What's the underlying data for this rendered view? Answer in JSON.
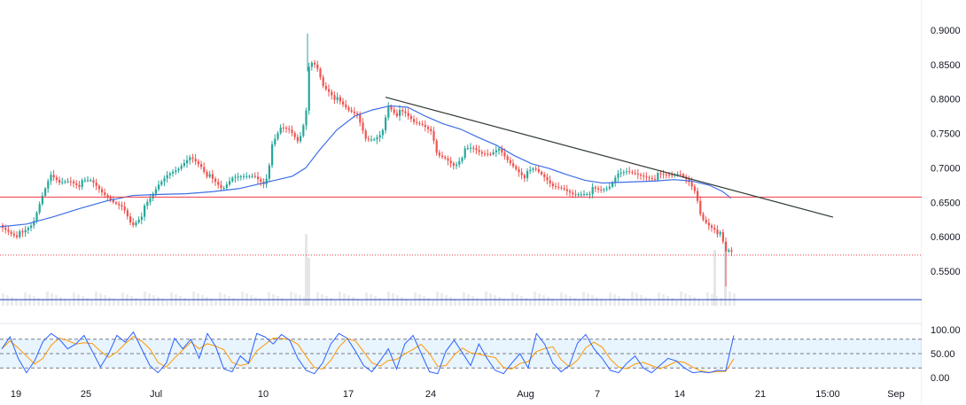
{
  "chart_data": {
    "type": "candlestick",
    "price_axis": {
      "ticks": [
        "0.9000",
        "0.8500",
        "0.8000",
        "0.7500",
        "0.7000",
        "0.6500",
        "0.6000",
        "0.5500"
      ],
      "range": [
        0.5,
        0.905
      ]
    },
    "time_axis": {
      "labels": [
        "19",
        "25",
        "Jul",
        "10",
        "17",
        "24",
        "Aug",
        "7",
        "14",
        "21",
        "15:00",
        "Sep"
      ]
    },
    "price_levels": [
      {
        "label": "0.6577",
        "value": 0.6577,
        "color": "#f23645",
        "style": "solid"
      },
      {
        "label": "0.5734",
        "value": 0.5734,
        "color": "#f23645",
        "style": "dotted"
      },
      {
        "label": "0.5089",
        "value": 0.5089,
        "color": "#1e3fb0",
        "style": "solid"
      }
    ],
    "trendline": {
      "start": {
        "x": 435,
        "price": 0.8025
      },
      "end": {
        "x": 940,
        "price": 0.6285
      },
      "color": "#2f3a32"
    },
    "moving_average": {
      "color": "#3c6ee6",
      "points": [
        [
          0,
          0.6145
        ],
        [
          30,
          0.6185
        ],
        [
          60,
          0.629
        ],
        [
          90,
          0.641
        ],
        [
          120,
          0.652
        ],
        [
          150,
          0.66
        ],
        [
          180,
          0.6615
        ],
        [
          210,
          0.6625
        ],
        [
          240,
          0.6655
        ],
        [
          270,
          0.67
        ],
        [
          300,
          0.679
        ],
        [
          330,
          0.688
        ],
        [
          345,
          0.7
        ],
        [
          360,
          0.725
        ],
        [
          380,
          0.755
        ],
        [
          400,
          0.775
        ],
        [
          420,
          0.784
        ],
        [
          440,
          0.79
        ],
        [
          460,
          0.788
        ],
        [
          480,
          0.775
        ],
        [
          500,
          0.764
        ],
        [
          520,
          0.756
        ],
        [
          540,
          0.744
        ],
        [
          560,
          0.733
        ],
        [
          580,
          0.718
        ],
        [
          600,
          0.706
        ],
        [
          620,
          0.699
        ],
        [
          640,
          0.69
        ],
        [
          660,
          0.682
        ],
        [
          680,
          0.678
        ],
        [
          700,
          0.679
        ],
        [
          720,
          0.68
        ],
        [
          740,
          0.681
        ],
        [
          760,
          0.683
        ],
        [
          780,
          0.681
        ],
        [
          800,
          0.675
        ],
        [
          815,
          0.666
        ],
        [
          825,
          0.656
        ]
      ]
    },
    "price_path": [
      [
        0,
        0.617
      ],
      [
        12,
        0.608
      ],
      [
        24,
        0.601
      ],
      [
        36,
        0.615
      ],
      [
        46,
        0.655
      ],
      [
        56,
        0.69
      ],
      [
        66,
        0.68
      ],
      [
        78,
        0.684
      ],
      [
        90,
        0.676
      ],
      [
        102,
        0.678
      ],
      [
        114,
        0.662
      ],
      [
        126,
        0.65
      ],
      [
        138,
        0.644
      ],
      [
        148,
        0.618
      ],
      [
        158,
        0.632
      ],
      [
        168,
        0.65
      ],
      [
        178,
        0.672
      ],
      [
        188,
        0.688
      ],
      [
        200,
        0.698
      ],
      [
        214,
        0.718
      ],
      [
        226,
        0.705
      ],
      [
        238,
        0.68
      ],
      [
        250,
        0.665
      ],
      [
        262,
        0.685
      ],
      [
        274,
        0.688
      ],
      [
        286,
        0.69
      ],
      [
        298,
        0.678
      ],
      [
        306,
        0.728
      ],
      [
        316,
        0.755
      ],
      [
        326,
        0.752
      ],
      [
        336,
        0.735
      ],
      [
        344,
        0.775
      ],
      [
        348,
        0.855
      ],
      [
        356,
        0.85
      ],
      [
        364,
        0.82
      ],
      [
        372,
        0.812
      ],
      [
        382,
        0.792
      ],
      [
        392,
        0.78
      ],
      [
        402,
        0.775
      ],
      [
        412,
        0.74
      ],
      [
        422,
        0.742
      ],
      [
        430,
        0.752
      ],
      [
        437,
        0.793
      ],
      [
        446,
        0.78
      ],
      [
        456,
        0.775
      ],
      [
        466,
        0.763
      ],
      [
        476,
        0.76
      ],
      [
        486,
        0.752
      ],
      [
        492,
        0.72
      ],
      [
        502,
        0.715
      ],
      [
        512,
        0.705
      ],
      [
        522,
        0.722
      ],
      [
        532,
        0.725
      ],
      [
        542,
        0.718
      ],
      [
        552,
        0.718
      ],
      [
        562,
        0.728
      ],
      [
        572,
        0.712
      ],
      [
        582,
        0.7
      ],
      [
        592,
        0.688
      ],
      [
        602,
        0.695
      ],
      [
        612,
        0.685
      ],
      [
        622,
        0.672
      ],
      [
        634,
        0.67
      ],
      [
        646,
        0.663
      ],
      [
        656,
        0.665
      ],
      [
        666,
        0.667
      ],
      [
        676,
        0.663
      ],
      [
        686,
        0.668
      ],
      [
        696,
        0.69
      ],
      [
        706,
        0.695
      ],
      [
        716,
        0.693
      ],
      [
        726,
        0.69
      ],
      [
        736,
        0.688
      ],
      [
        746,
        0.686
      ],
      [
        756,
        0.686
      ],
      [
        766,
        0.69
      ],
      [
        776,
        0.68
      ],
      [
        784,
        0.665
      ],
      [
        790,
        0.63
      ],
      [
        798,
        0.62
      ],
      [
        806,
        0.614
      ],
      [
        812,
        0.6
      ],
      [
        818,
        0.574
      ],
      [
        822,
        0.577
      ],
      [
        826,
        0.5734
      ]
    ],
    "volume_spikes": [
      [
        345,
        0.9
      ],
      [
        348,
        0.6
      ],
      [
        806,
        0.7
      ],
      [
        818,
        0.8
      ]
    ],
    "stochastic": {
      "ticks": [
        "100.00",
        "50.00",
        "0.00"
      ],
      "range": [
        0,
        100
      ],
      "bands": [
        80,
        20
      ],
      "k_color": "#2962ff",
      "d_color": "#ff9800",
      "k_values": [
        60,
        85,
        40,
        10,
        35,
        75,
        92,
        80,
        60,
        70,
        88,
        55,
        22,
        50,
        88,
        74,
        95,
        60,
        25,
        10,
        30,
        82,
        60,
        80,
        40,
        92,
        65,
        18,
        12,
        45,
        30,
        92,
        85,
        70,
        90,
        78,
        40,
        15,
        8,
        30,
        70,
        92,
        82,
        55,
        25,
        12,
        35,
        60,
        18,
        70,
        88,
        50,
        12,
        8,
        55,
        78,
        52,
        25,
        70,
        40,
        15,
        8,
        30,
        50,
        20,
        92,
        70,
        30,
        12,
        25,
        72,
        90,
        60,
        40,
        15,
        10,
        30,
        45,
        20,
        10,
        25,
        40,
        35,
        20,
        10,
        12,
        10,
        15,
        14,
        88
      ]
    },
    "watermark_text": "0.9000"
  }
}
